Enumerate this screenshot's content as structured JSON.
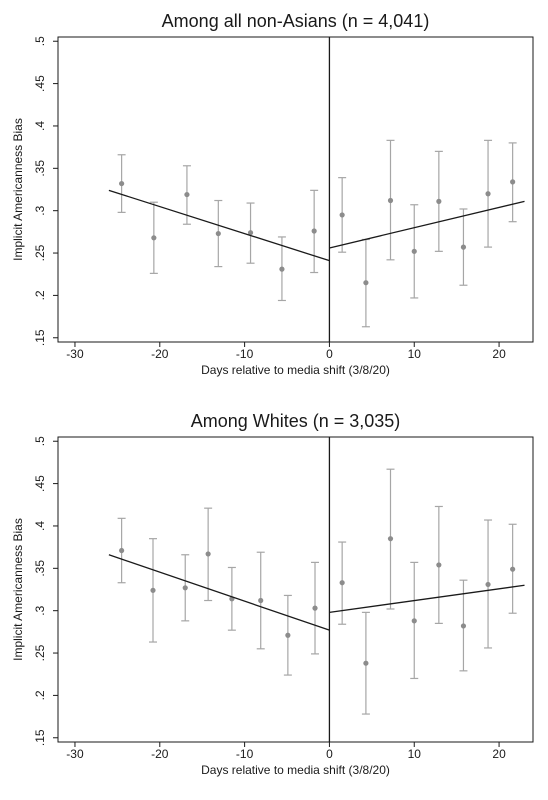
{
  "chart_data": [
    {
      "type": "scatter",
      "title": "Among all non-Asians (n = 4,041)",
      "xlabel": "Days relative to media shift (3/8/20)",
      "ylabel": "Implicit Americanness Bias",
      "xlim": [
        -32,
        24
      ],
      "ylim": [
        0.145,
        0.505
      ],
      "xticks": [
        -30,
        -20,
        -10,
        0,
        10,
        20
      ],
      "yticks": [
        0.15,
        0.2,
        0.25,
        0.3,
        0.35,
        0.4,
        0.45,
        0.5
      ],
      "ytick_labels": [
        ".15",
        ".2",
        ".25",
        ".3",
        ".35",
        ".4",
        ".45",
        ".5"
      ],
      "cutoff_x": 0,
      "points": [
        {
          "x": -24.5,
          "y": 0.332,
          "lo": 0.298,
          "hi": 0.366
        },
        {
          "x": -20.7,
          "y": 0.268,
          "lo": 0.226,
          "hi": 0.31
        },
        {
          "x": -16.8,
          "y": 0.319,
          "lo": 0.284,
          "hi": 0.353
        },
        {
          "x": -13.1,
          "y": 0.273,
          "lo": 0.234,
          "hi": 0.312
        },
        {
          "x": -9.3,
          "y": 0.274,
          "lo": 0.238,
          "hi": 0.309
        },
        {
          "x": -5.6,
          "y": 0.231,
          "lo": 0.194,
          "hi": 0.269
        },
        {
          "x": -1.8,
          "y": 0.276,
          "lo": 0.227,
          "hi": 0.324
        },
        {
          "x": 1.5,
          "y": 0.295,
          "lo": 0.251,
          "hi": 0.339
        },
        {
          "x": 4.3,
          "y": 0.215,
          "lo": 0.163,
          "hi": 0.266
        },
        {
          "x": 7.2,
          "y": 0.312,
          "lo": 0.242,
          "hi": 0.383
        },
        {
          "x": 10.0,
          "y": 0.252,
          "lo": 0.197,
          "hi": 0.307
        },
        {
          "x": 12.9,
          "y": 0.311,
          "lo": 0.252,
          "hi": 0.37
        },
        {
          "x": 15.8,
          "y": 0.257,
          "lo": 0.212,
          "hi": 0.302
        },
        {
          "x": 18.7,
          "y": 0.32,
          "lo": 0.257,
          "hi": 0.383
        },
        {
          "x": 21.6,
          "y": 0.334,
          "lo": 0.287,
          "hi": 0.38
        }
      ],
      "fit_lines": [
        {
          "x": [
            -26,
            0
          ],
          "y": [
            0.324,
            0.241
          ]
        },
        {
          "x": [
            0,
            23
          ],
          "y": [
            0.256,
            0.311
          ]
        }
      ],
      "point_color": "#8c8c8c",
      "errorbar_color": "#a6a6a6",
      "line_color": "#1a1a1a",
      "grid": false
    },
    {
      "type": "scatter",
      "title": "Among Whites (n = 3,035)",
      "xlabel": "Days relative to media shift (3/8/20)",
      "ylabel": "Implicit Americanness Bias",
      "xlim": [
        -32,
        24
      ],
      "ylim": [
        0.145,
        0.505
      ],
      "xticks": [
        -30,
        -20,
        -10,
        0,
        10,
        20
      ],
      "yticks": [
        0.15,
        0.2,
        0.25,
        0.3,
        0.35,
        0.4,
        0.45,
        0.5
      ],
      "ytick_labels": [
        ".15",
        ".2",
        ".25",
        ".3",
        ".35",
        ".4",
        ".45",
        ".5"
      ],
      "cutoff_x": 0,
      "points": [
        {
          "x": -24.5,
          "y": 0.371,
          "lo": 0.333,
          "hi": 0.409
        },
        {
          "x": -20.8,
          "y": 0.324,
          "lo": 0.263,
          "hi": 0.385
        },
        {
          "x": -17.0,
          "y": 0.327,
          "lo": 0.288,
          "hi": 0.366
        },
        {
          "x": -14.3,
          "y": 0.367,
          "lo": 0.312,
          "hi": 0.421
        },
        {
          "x": -11.5,
          "y": 0.314,
          "lo": 0.277,
          "hi": 0.351
        },
        {
          "x": -8.1,
          "y": 0.312,
          "lo": 0.255,
          "hi": 0.369
        },
        {
          "x": -4.9,
          "y": 0.271,
          "lo": 0.224,
          "hi": 0.318
        },
        {
          "x": -1.7,
          "y": 0.303,
          "lo": 0.249,
          "hi": 0.357
        },
        {
          "x": 1.5,
          "y": 0.333,
          "lo": 0.284,
          "hi": 0.381
        },
        {
          "x": 4.3,
          "y": 0.238,
          "lo": 0.178,
          "hi": 0.298
        },
        {
          "x": 7.2,
          "y": 0.385,
          "lo": 0.302,
          "hi": 0.467
        },
        {
          "x": 10.0,
          "y": 0.288,
          "lo": 0.22,
          "hi": 0.357
        },
        {
          "x": 12.9,
          "y": 0.354,
          "lo": 0.285,
          "hi": 0.423
        },
        {
          "x": 15.8,
          "y": 0.282,
          "lo": 0.229,
          "hi": 0.336
        },
        {
          "x": 18.7,
          "y": 0.331,
          "lo": 0.256,
          "hi": 0.407
        },
        {
          "x": 21.6,
          "y": 0.349,
          "lo": 0.297,
          "hi": 0.402
        }
      ],
      "fit_lines": [
        {
          "x": [
            -26,
            0
          ],
          "y": [
            0.366,
            0.277
          ]
        },
        {
          "x": [
            0,
            23
          ],
          "y": [
            0.298,
            0.33
          ]
        }
      ],
      "point_color": "#8c8c8c",
      "errorbar_color": "#a6a6a6",
      "line_color": "#1a1a1a",
      "grid": false
    }
  ]
}
